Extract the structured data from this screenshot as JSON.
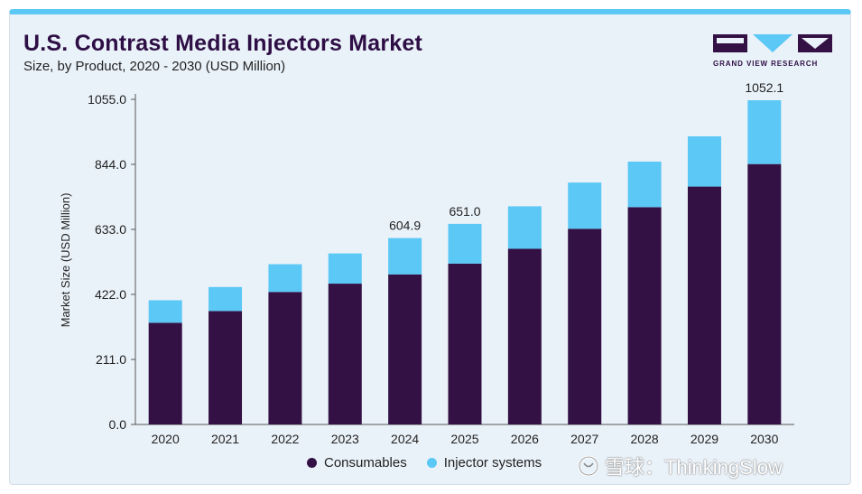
{
  "header": {
    "title": "U.S. Contrast Media Injectors Market",
    "subtitle": "Size, by Product, 2020 - 2030 (USD Million)",
    "logo_text": "GRAND VIEW RESEARCH"
  },
  "colors": {
    "consumables": "#341145",
    "injector_systems": "#5bc8f5",
    "accent": "#5bc8f5"
  },
  "watermark": "雪球：ThinkingSlow",
  "chart_data": {
    "type": "bar",
    "stacked": true,
    "title": "U.S. Contrast Media Injectors Market",
    "subtitle": "Size, by Product, 2020 - 2030 (USD Million)",
    "xlabel": "",
    "ylabel": "Market Size (USD Million)",
    "ylim": [
      0,
      1055
    ],
    "yticks": [
      "0.0",
      "211.0",
      "422.0",
      "633.0",
      "844.0",
      "1055.0"
    ],
    "categories": [
      "2020",
      "2021",
      "2022",
      "2023",
      "2024",
      "2025",
      "2026",
      "2027",
      "2028",
      "2029",
      "2030"
    ],
    "series": [
      {
        "name": "Consumables",
        "values": [
          330,
          368,
          430,
          457,
          487,
          522,
          570,
          635,
          705,
          772,
          845
        ]
      },
      {
        "name": "Injector systems",
        "values": [
          73,
          78,
          90,
          98,
          117.9,
          129,
          138,
          150,
          148,
          163,
          207.1
        ]
      }
    ],
    "data_labels": [
      {
        "category": "2024",
        "text": "604.9"
      },
      {
        "category": "2025",
        "text": "651.0"
      },
      {
        "category": "2030",
        "text": "1052.1"
      }
    ],
    "legend": "bottom",
    "grid": false
  }
}
